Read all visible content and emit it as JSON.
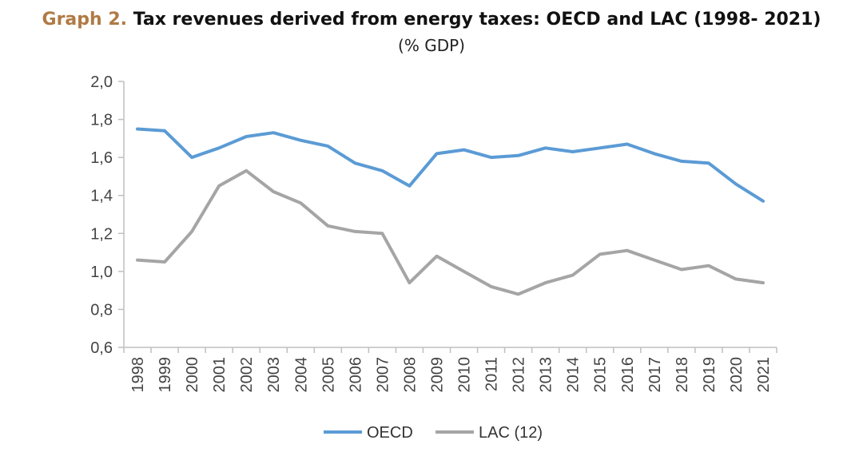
{
  "title_prefix": "Graph 2.",
  "title_main": "Tax revenues derived from energy taxes: OECD and LAC (1998- 2021)",
  "subtitle": "(% GDP)",
  "chart_data": {
    "type": "line",
    "title": "Graph 2. Tax revenues derived from energy taxes: OECD and LAC (1998- 2021)",
    "subtitle": "(% GDP)",
    "categories": [
      "1998",
      "1999",
      "2000",
      "2001",
      "2002",
      "2003",
      "2004",
      "2005",
      "2006",
      "2007",
      "2008",
      "2009",
      "2010",
      "2011",
      "2012",
      "2013",
      "2014",
      "2015",
      "2016",
      "2017",
      "2018",
      "2019",
      "2020",
      "2021"
    ],
    "ylim": [
      0.6,
      2.0
    ],
    "yticks": [
      "0,6",
      "0,8",
      "1,0",
      "1,2",
      "1,4",
      "1,6",
      "1,8",
      "2,0"
    ],
    "ytick_values": [
      0.6,
      0.8,
      1.0,
      1.2,
      1.4,
      1.6,
      1.8,
      2.0
    ],
    "grid": false,
    "legend_position": "bottom",
    "series": [
      {
        "name": "OECD",
        "color": "#5b9bd5",
        "values": [
          1.75,
          1.74,
          1.6,
          1.65,
          1.71,
          1.73,
          1.69,
          1.66,
          1.57,
          1.53,
          1.45,
          1.62,
          1.64,
          1.6,
          1.61,
          1.65,
          1.63,
          1.65,
          1.67,
          1.62,
          1.58,
          1.57,
          1.46,
          1.37
        ]
      },
      {
        "name": "LAC (12)",
        "color": "#a5a5a5",
        "values": [
          1.06,
          1.05,
          1.21,
          1.45,
          1.53,
          1.42,
          1.36,
          1.24,
          1.21,
          1.2,
          0.94,
          1.08,
          1.0,
          0.92,
          0.88,
          0.94,
          0.98,
          1.09,
          1.11,
          1.06,
          1.01,
          1.03,
          0.96,
          0.94
        ]
      }
    ]
  }
}
